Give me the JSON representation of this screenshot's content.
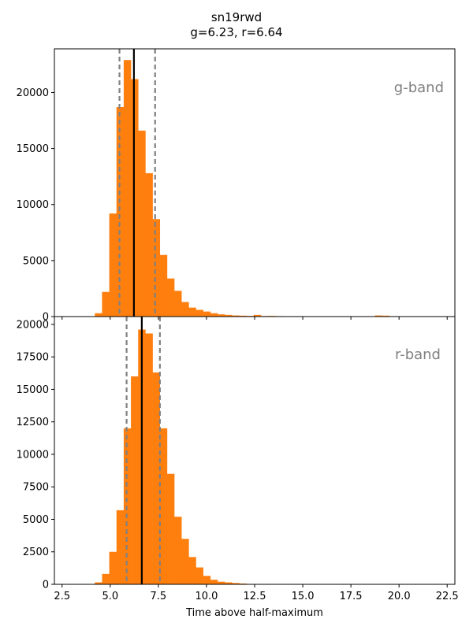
{
  "title": [
    "sn19rwd",
    "g=6.23, r=6.64"
  ],
  "xlabel": "Time above half-maximum",
  "bar_color": "#ff7f0e",
  "median_line_color": "#000000",
  "bound_line_color": "#808080",
  "x_ticks": [
    2.5,
    5.0,
    7.5,
    10.0,
    12.5,
    15.0,
    17.5,
    20.0,
    22.5
  ],
  "x_tick_labels": [
    "2.5",
    "5.0",
    "7.5",
    "10.0",
    "12.5",
    "15.0",
    "17.5",
    "20.0",
    "22.5"
  ],
  "chart_data": [
    {
      "type": "bar",
      "band_label": "g-band",
      "xlim": [
        2.1,
        22.9
      ],
      "ylim": [
        0,
        23900
      ],
      "y_ticks": [
        0,
        5000,
        10000,
        15000,
        20000
      ],
      "y_tick_labels": [
        "0",
        "5000",
        "10000",
        "15000",
        "20000"
      ],
      "bin_width": 0.375,
      "bin_starts": [
        4.2,
        4.575,
        4.95,
        5.325,
        5.7,
        6.075,
        6.45,
        6.825,
        7.2,
        7.575,
        7.95,
        8.325,
        8.7,
        9.075,
        9.45,
        9.825,
        10.2,
        10.575,
        10.95,
        11.325,
        11.7,
        12.075,
        12.45,
        12.825,
        13.2,
        13.575,
        18.75,
        19.125
      ],
      "values": [
        300,
        2200,
        9200,
        18700,
        22900,
        21200,
        16600,
        12800,
        8700,
        5500,
        3400,
        2300,
        1300,
        800,
        600,
        450,
        300,
        200,
        150,
        100,
        80,
        60,
        150,
        50,
        60,
        40,
        100,
        80
      ],
      "median": 6.23,
      "lower": 5.48,
      "upper": 7.33
    },
    {
      "type": "bar",
      "band_label": "r-band",
      "xlim": [
        2.1,
        22.9
      ],
      "ylim": [
        0,
        20600
      ],
      "y_ticks": [
        0,
        2500,
        5000,
        7500,
        10000,
        12500,
        15000,
        17500,
        20000
      ],
      "y_tick_labels": [
        "0",
        "2500",
        "5000",
        "7500",
        "10000",
        "12500",
        "15000",
        "17500",
        "20000"
      ],
      "bin_width": 0.375,
      "bin_starts": [
        4.2,
        4.575,
        4.95,
        5.325,
        5.7,
        6.075,
        6.45,
        6.825,
        7.2,
        7.575,
        7.95,
        8.325,
        8.7,
        9.075,
        9.45,
        9.825,
        10.2,
        10.575,
        10.95,
        11.325,
        11.7
      ],
      "values": [
        150,
        800,
        2500,
        5700,
        12000,
        16000,
        19600,
        19300,
        16300,
        12000,
        8500,
        5200,
        3500,
        2100,
        1300,
        650,
        350,
        200,
        150,
        100,
        60
      ],
      "median": 6.64,
      "lower": 5.85,
      "upper": 7.58
    }
  ]
}
